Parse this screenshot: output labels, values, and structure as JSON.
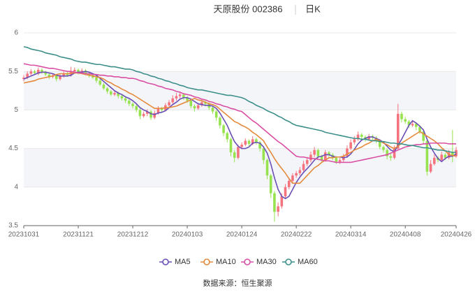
{
  "chart_data": {
    "type": "candlestick",
    "title": "天原股份 002386",
    "period": "日K",
    "source": "数据来源：恒生聚源",
    "categories": [
      "20231031",
      null,
      null,
      null,
      null,
      null,
      null,
      null,
      null,
      null,
      null,
      null,
      null,
      null,
      null,
      "20231121",
      null,
      null,
      null,
      null,
      null,
      null,
      null,
      null,
      null,
      null,
      null,
      null,
      null,
      null,
      "20231212",
      null,
      null,
      null,
      null,
      null,
      null,
      null,
      null,
      null,
      null,
      null,
      null,
      null,
      null,
      "20240103",
      null,
      null,
      null,
      null,
      null,
      null,
      null,
      null,
      null,
      null,
      null,
      null,
      null,
      null,
      "20240124",
      null,
      null,
      null,
      null,
      null,
      null,
      null,
      null,
      null,
      null,
      null,
      null,
      null,
      null,
      "20240222",
      null,
      null,
      null,
      null,
      null,
      null,
      null,
      null,
      null,
      null,
      null,
      null,
      null,
      null,
      "20240314",
      null,
      null,
      null,
      null,
      null,
      null,
      null,
      null,
      null,
      null,
      null,
      null,
      null,
      null,
      "20240408",
      null,
      null,
      null,
      null,
      null,
      null,
      null,
      null,
      null,
      null,
      null,
      null,
      null,
      "20240426"
    ],
    "open": [
      5.4,
      5.42,
      5.47,
      5.5,
      5.47,
      5.52,
      5.49,
      5.46,
      5.43,
      5.45,
      5.4,
      5.44,
      5.47,
      5.45,
      5.5,
      5.52,
      5.49,
      5.51,
      5.47,
      5.45,
      5.42,
      5.38,
      5.33,
      5.28,
      5.24,
      5.2,
      5.22,
      5.18,
      5.15,
      5.12,
      5.08,
      5.05,
      5.0,
      4.92,
      4.95,
      4.98,
      4.9,
      4.96,
      5.02,
      5.0,
      5.06,
      5.1,
      5.15,
      5.18,
      5.2,
      5.16,
      5.12,
      5.05,
      5.02,
      5.06,
      5.1,
      5.08,
      5.03,
      4.98,
      4.9,
      4.8,
      4.7,
      4.62,
      4.45,
      4.38,
      4.52,
      4.55,
      4.6,
      4.56,
      4.62,
      4.58,
      4.5,
      4.35,
      4.15,
      3.92,
      3.68,
      3.75,
      3.88,
      4.0,
      4.08,
      4.15,
      4.18,
      4.22,
      4.3,
      4.35,
      4.42,
      4.48,
      4.4,
      4.35,
      4.45,
      4.42,
      4.38,
      4.33,
      4.35,
      4.4,
      4.5,
      4.58,
      4.62,
      4.68,
      4.65,
      4.62,
      4.66,
      4.64,
      4.6,
      4.52,
      4.48,
      4.4,
      4.38,
      4.5,
      4.95,
      4.88,
      4.85,
      4.8,
      4.82,
      4.78,
      4.72,
      4.6,
      4.2,
      4.3,
      4.38,
      4.35,
      4.42,
      4.38,
      4.45,
      4.4
    ],
    "close": [
      5.42,
      5.47,
      5.5,
      5.48,
      5.52,
      5.49,
      5.46,
      5.43,
      5.45,
      5.4,
      5.44,
      5.47,
      5.45,
      5.5,
      5.52,
      5.49,
      5.51,
      5.47,
      5.45,
      5.42,
      5.38,
      5.33,
      5.28,
      5.24,
      5.2,
      5.22,
      5.18,
      5.15,
      5.12,
      5.08,
      5.05,
      5.0,
      4.92,
      4.95,
      4.98,
      4.9,
      4.96,
      5.02,
      5.0,
      5.06,
      5.1,
      5.15,
      5.18,
      5.2,
      5.16,
      5.12,
      5.05,
      5.02,
      5.06,
      5.1,
      5.08,
      5.03,
      4.98,
      4.9,
      4.8,
      4.7,
      4.62,
      4.45,
      4.38,
      4.52,
      4.55,
      4.6,
      4.56,
      4.62,
      4.58,
      4.5,
      4.35,
      4.15,
      3.92,
      3.68,
      3.75,
      3.88,
      4.0,
      4.08,
      4.15,
      4.18,
      4.22,
      4.3,
      4.35,
      4.42,
      4.48,
      4.4,
      4.35,
      4.45,
      4.42,
      4.38,
      4.33,
      4.35,
      4.4,
      4.5,
      4.58,
      4.62,
      4.68,
      4.65,
      4.62,
      4.66,
      4.64,
      4.6,
      4.52,
      4.48,
      4.4,
      4.38,
      4.5,
      4.95,
      4.88,
      4.85,
      4.8,
      4.82,
      4.78,
      4.72,
      4.6,
      4.2,
      4.3,
      4.38,
      4.35,
      4.42,
      4.38,
      4.45,
      4.4,
      4.48
    ],
    "low": [
      5.37,
      5.4,
      5.45,
      5.46,
      5.45,
      5.47,
      5.44,
      5.4,
      5.41,
      5.37,
      5.38,
      5.42,
      5.43,
      5.43,
      5.47,
      5.46,
      5.47,
      5.45,
      5.42,
      5.4,
      5.35,
      5.31,
      5.26,
      5.21,
      5.18,
      5.18,
      5.15,
      5.12,
      5.09,
      5.05,
      5.02,
      4.97,
      4.88,
      4.9,
      4.92,
      4.87,
      4.88,
      4.94,
      4.97,
      4.98,
      5.03,
      5.08,
      5.12,
      5.15,
      5.13,
      5.09,
      5.02,
      4.98,
      5.0,
      5.04,
      5.05,
      5.0,
      4.95,
      4.86,
      4.76,
      4.66,
      4.58,
      4.4,
      4.32,
      4.36,
      4.49,
      4.53,
      4.53,
      4.54,
      4.55,
      4.46,
      4.3,
      4.1,
      3.86,
      3.55,
      3.62,
      3.72,
      3.85,
      3.97,
      4.05,
      4.12,
      4.15,
      4.2,
      4.27,
      4.32,
      4.39,
      4.37,
      4.32,
      4.33,
      4.39,
      4.35,
      4.3,
      4.3,
      4.33,
      4.38,
      4.48,
      4.55,
      4.6,
      4.62,
      4.59,
      4.6,
      4.61,
      4.57,
      4.49,
      4.45,
      4.36,
      4.34,
      4.36,
      4.48,
      4.84,
      4.82,
      4.77,
      4.78,
      4.74,
      4.69,
      4.56,
      4.15,
      4.18,
      4.28,
      4.32,
      4.33,
      4.35,
      4.36,
      4.32,
      4.38
    ],
    "high": [
      5.45,
      5.5,
      5.53,
      5.52,
      5.55,
      5.54,
      5.51,
      5.48,
      5.47,
      5.46,
      5.46,
      5.5,
      5.49,
      5.56,
      5.55,
      5.54,
      5.54,
      5.53,
      5.49,
      5.47,
      5.44,
      5.4,
      5.35,
      5.3,
      5.26,
      5.25,
      5.24,
      5.2,
      5.17,
      5.14,
      5.1,
      5.07,
      5.02,
      4.98,
      5.01,
      5.0,
      4.99,
      5.05,
      5.04,
      5.09,
      5.13,
      5.19,
      5.22,
      5.24,
      5.22,
      5.18,
      5.14,
      5.07,
      5.09,
      5.13,
      5.12,
      5.1,
      5.05,
      5.0,
      4.92,
      4.82,
      4.72,
      4.64,
      4.48,
      4.55,
      4.58,
      4.63,
      4.62,
      4.66,
      4.64,
      4.6,
      4.52,
      4.37,
      4.17,
      3.95,
      3.8,
      3.92,
      4.04,
      4.12,
      4.18,
      4.21,
      4.26,
      4.34,
      4.39,
      4.46,
      4.52,
      4.5,
      4.42,
      4.48,
      4.47,
      4.44,
      4.4,
      4.38,
      4.43,
      4.54,
      4.62,
      4.66,
      4.72,
      4.7,
      4.67,
      4.69,
      4.68,
      4.66,
      4.62,
      4.54,
      4.5,
      4.43,
      4.54,
      5.08,
      4.98,
      4.91,
      4.87,
      4.86,
      4.84,
      4.8,
      4.74,
      4.62,
      4.35,
      4.42,
      4.4,
      4.46,
      4.44,
      4.48,
      4.74,
      4.52
    ],
    "up_color": "#f4737f",
    "down_color": "#96e34f",
    "series": [
      {
        "name": "MA5",
        "color": "#6a4fb5",
        "values": [
          5.4,
          5.42,
          5.44,
          5.46,
          5.48,
          5.49,
          5.49,
          5.48,
          5.47,
          5.45,
          5.44,
          5.44,
          5.44,
          5.45,
          5.48,
          5.49,
          5.49,
          5.5,
          5.49,
          5.47,
          5.45,
          5.41,
          5.37,
          5.33,
          5.29,
          5.25,
          5.22,
          5.2,
          5.17,
          5.15,
          5.12,
          5.08,
          5.03,
          5.0,
          4.98,
          4.95,
          4.94,
          4.96,
          4.97,
          4.99,
          5.03,
          5.07,
          5.1,
          5.14,
          5.16,
          5.16,
          5.14,
          5.11,
          5.08,
          5.07,
          5.06,
          5.06,
          5.05,
          5.02,
          4.96,
          4.88,
          4.8,
          4.69,
          4.59,
          4.53,
          4.5,
          4.5,
          4.52,
          4.57,
          4.58,
          4.57,
          4.52,
          4.44,
          4.3,
          4.12,
          3.97,
          3.88,
          3.85,
          3.88,
          3.97,
          4.06,
          4.13,
          4.19,
          4.24,
          4.29,
          4.35,
          4.39,
          4.4,
          4.42,
          4.42,
          4.4,
          4.39,
          4.39,
          4.38,
          4.39,
          4.43,
          4.49,
          4.56,
          4.61,
          4.63,
          4.65,
          4.65,
          4.63,
          4.61,
          4.58,
          4.53,
          4.48,
          4.46,
          4.54,
          4.62,
          4.71,
          4.8,
          4.86,
          4.83,
          4.79,
          4.74,
          4.62,
          4.52,
          4.44,
          4.37,
          4.33,
          4.37,
          4.4,
          4.4,
          4.43
        ]
      },
      {
        "name": "MA10",
        "color": "#e58a3c",
        "values": [
          5.35,
          5.36,
          5.37,
          5.38,
          5.4,
          5.41,
          5.42,
          5.43,
          5.44,
          5.46,
          5.47,
          5.47,
          5.47,
          5.48,
          5.48,
          5.48,
          5.47,
          5.46,
          5.45,
          5.44,
          5.43,
          5.42,
          5.4,
          5.37,
          5.35,
          5.32,
          5.3,
          5.27,
          5.25,
          5.22,
          5.2,
          5.17,
          5.14,
          5.11,
          5.08,
          5.05,
          5.02,
          5.02,
          5.02,
          5.03,
          5.03,
          5.04,
          5.05,
          5.07,
          5.09,
          5.11,
          5.13,
          5.15,
          5.13,
          5.12,
          5.1,
          5.08,
          5.07,
          5.05,
          5.01,
          4.97,
          4.93,
          4.89,
          4.85,
          4.83,
          4.8,
          4.78,
          4.75,
          4.71,
          4.68,
          4.64,
          4.6,
          4.52,
          4.45,
          4.37,
          4.3,
          4.24,
          4.18,
          4.11,
          4.05,
          4.05,
          4.05,
          4.1,
          4.15,
          4.2,
          4.25,
          4.28,
          4.32,
          4.35,
          4.38,
          4.38,
          4.39,
          4.39,
          4.4,
          4.43,
          4.45,
          4.48,
          4.5,
          4.52,
          4.55,
          4.57,
          4.6,
          4.62,
          4.6,
          4.57,
          4.55,
          4.52,
          4.5,
          4.53,
          4.57,
          4.6,
          4.63,
          4.66,
          4.69,
          4.72,
          4.69,
          4.66,
          4.63,
          4.6,
          4.56,
          4.51,
          4.47,
          4.42,
          4.41,
          4.4
        ]
      },
      {
        "name": "MA30",
        "color": "#d94fa3",
        "values": [
          5.6,
          5.59,
          5.58,
          5.58,
          5.57,
          5.56,
          5.55,
          5.54,
          5.54,
          5.53,
          5.52,
          5.51,
          5.5,
          5.5,
          5.49,
          5.48,
          5.48,
          5.47,
          5.47,
          5.46,
          5.46,
          5.45,
          5.45,
          5.44,
          5.44,
          5.43,
          5.43,
          5.42,
          5.42,
          5.41,
          5.41,
          5.4,
          5.38,
          5.37,
          5.35,
          5.34,
          5.33,
          5.31,
          5.3,
          5.28,
          5.27,
          5.26,
          5.24,
          5.23,
          5.21,
          5.2,
          5.19,
          5.17,
          5.16,
          5.14,
          5.13,
          5.11,
          5.1,
          5.08,
          5.07,
          5.05,
          5.04,
          5.02,
          5.01,
          4.99,
          4.98,
          4.94,
          4.9,
          4.86,
          4.83,
          4.79,
          4.75,
          4.71,
          4.67,
          4.63,
          4.59,
          4.56,
          4.52,
          4.48,
          4.44,
          4.4,
          4.39,
          4.39,
          4.38,
          4.37,
          4.37,
          4.36,
          4.35,
          4.34,
          4.34,
          4.33,
          4.32,
          4.32,
          4.32,
          4.32,
          4.32,
          4.33,
          4.34,
          4.35,
          4.36,
          4.37,
          4.38,
          4.39,
          4.4,
          4.41,
          4.42,
          4.44,
          4.46,
          4.48,
          4.5,
          4.52,
          4.53,
          4.54,
          4.55,
          4.55,
          4.56,
          4.56,
          4.57,
          4.57,
          4.57,
          4.57,
          4.57,
          4.56,
          4.56,
          4.56
        ]
      },
      {
        "name": "MA60",
        "color": "#3d8f8a",
        "values": [
          5.82,
          5.81,
          5.79,
          5.78,
          5.77,
          5.76,
          5.74,
          5.73,
          5.72,
          5.71,
          5.69,
          5.68,
          5.67,
          5.66,
          5.64,
          5.63,
          5.62,
          5.62,
          5.61,
          5.6,
          5.59,
          5.59,
          5.58,
          5.57,
          5.56,
          5.56,
          5.55,
          5.54,
          5.53,
          5.53,
          5.52,
          5.5,
          5.49,
          5.47,
          5.46,
          5.44,
          5.43,
          5.41,
          5.4,
          5.38,
          5.37,
          5.35,
          5.34,
          5.32,
          5.31,
          5.29,
          5.28,
          5.27,
          5.26,
          5.26,
          5.25,
          5.24,
          5.23,
          5.22,
          5.21,
          5.2,
          5.19,
          5.19,
          5.18,
          5.17,
          5.16,
          5.14,
          5.11,
          5.09,
          5.06,
          5.04,
          5.02,
          4.99,
          4.97,
          4.95,
          4.92,
          4.9,
          4.87,
          4.85,
          4.82,
          4.8,
          4.79,
          4.78,
          4.77,
          4.76,
          4.75,
          4.74,
          4.73,
          4.71,
          4.7,
          4.69,
          4.68,
          4.67,
          4.66,
          4.65,
          4.64,
          4.63,
          4.63,
          4.62,
          4.62,
          4.61,
          4.6,
          4.6,
          4.59,
          4.59,
          4.58,
          4.57,
          4.57,
          4.56,
          4.56,
          4.55,
          4.54,
          4.54,
          4.53,
          4.52,
          4.51,
          4.51,
          4.5,
          4.49,
          4.48,
          4.48,
          4.47,
          4.46,
          4.45,
          4.45
        ]
      }
    ],
    "ylim": [
      3.5,
      6
    ],
    "yticks": [
      3.5,
      4,
      4.5,
      5,
      5.5,
      6
    ],
    "grid": true
  }
}
